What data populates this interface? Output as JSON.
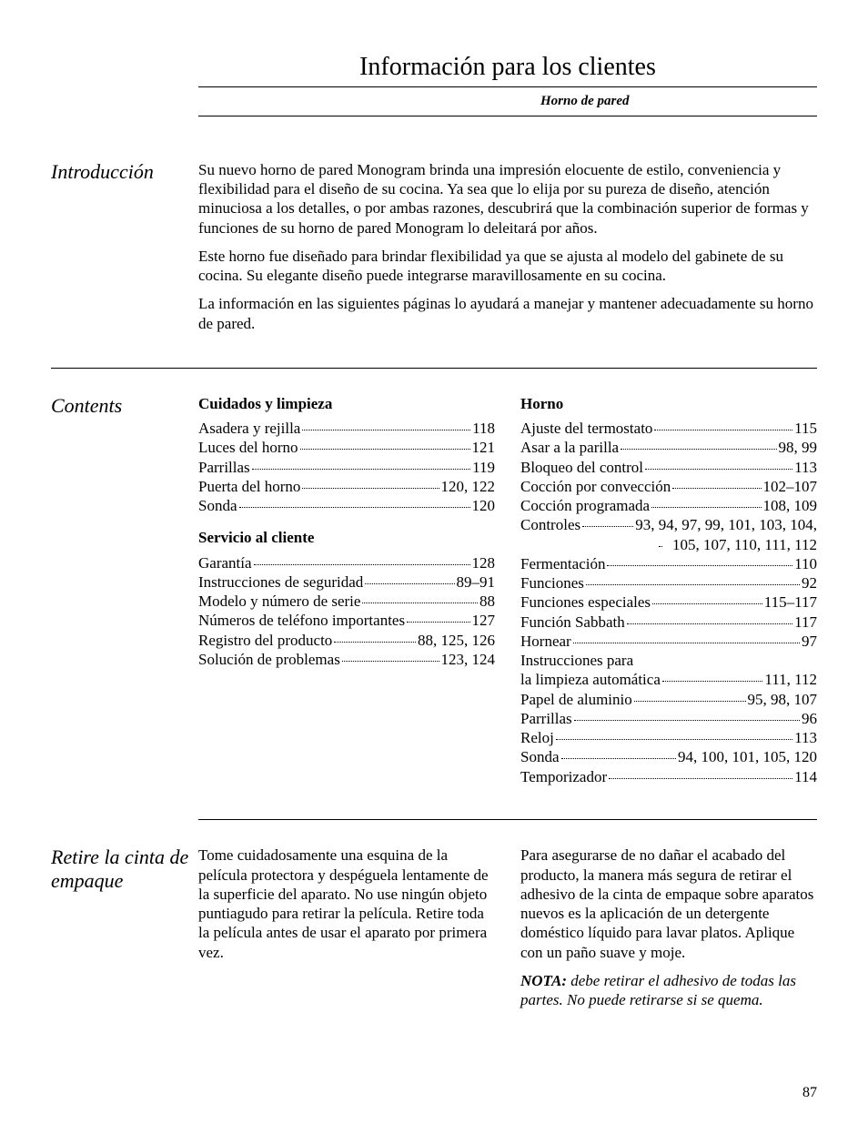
{
  "colors": {
    "text": "#000000",
    "background": "#ffffff",
    "rule": "#000000"
  },
  "typography": {
    "body_font": "Times New Roman, serif",
    "body_size_pt": 12,
    "title_size_pt": 20,
    "section_label_size_pt": 16
  },
  "header": {
    "title": "Información para los clientes",
    "subtitle": "Horno de pared"
  },
  "intro": {
    "label": "Introducción",
    "paragraphs": [
      "Su nuevo horno de pared Monogram brinda una impresión elocuente de estilo, conveniencia y flexibilidad para el diseño de su cocina. Ya sea que lo elija por su pureza de diseño, atención minuciosa a los detalles, o por ambas razones, descubrirá que la combinación superior de formas y funciones de su horno de pared Monogram lo deleitará por años.",
      "Este horno fue diseñado para brindar flexibilidad ya que se ajusta al modelo del gabinete de su cocina. Su elegante diseño puede integrarse maravillosamente en su cocina.",
      "La información en las siguientes páginas lo ayudará a manejar y mantener adecuadamente su horno de pared."
    ]
  },
  "contents": {
    "label": "Contents",
    "left": {
      "group1_title": "Cuidados y limpieza",
      "group1_items": [
        {
          "label": "Asadera y rejilla",
          "page": "118"
        },
        {
          "label": "Luces del horno",
          "page": "121"
        },
        {
          "label": "Parrillas",
          "page": "119"
        },
        {
          "label": "Puerta del horno",
          "page": "120, 122"
        },
        {
          "label": "Sonda",
          "page": "120"
        }
      ],
      "group2_title": "Servicio al cliente",
      "group2_items": [
        {
          "label": "Garantía",
          "page": "128"
        },
        {
          "label": "Instrucciones de seguridad",
          "page": "89–91"
        },
        {
          "label": "Modelo y número de serie",
          "page": "88"
        },
        {
          "label": "Números de teléfono importantes",
          "page": "127"
        },
        {
          "label": "Registro del producto",
          "page": "88, 125, 126"
        },
        {
          "label": "Solución de problemas",
          "page": "123, 124"
        }
      ]
    },
    "right": {
      "group1_title": "Horno",
      "group1_items": [
        {
          "label": "Ajuste del termostato",
          "page": "115"
        },
        {
          "label": "Asar a la parilla",
          "page": "98, 99"
        },
        {
          "label": "Bloqueo del control",
          "page": "113"
        },
        {
          "label": "Cocción por convección",
          "page": "102–107"
        },
        {
          "label": "Cocción programada",
          "page": "108, 109"
        },
        {
          "label": "Controles",
          "page": "93, 94, 97, 99, 101, 103, 104,",
          "page2": "105, 107, 110, 111, 112"
        },
        {
          "label": "Fermentación",
          "page": "110"
        },
        {
          "label": "Funciones",
          "page": "92"
        },
        {
          "label": "Funciones especiales",
          "page": "115–117"
        },
        {
          "label": "Función Sabbath",
          "page": "117"
        },
        {
          "label": "Hornear",
          "page": "97"
        },
        {
          "label": "Instrucciones para",
          "noline": true
        },
        {
          "label": "la limpieza automática",
          "page": "111, 112"
        },
        {
          "label": "Papel de aluminio",
          "page": "95, 98, 107"
        },
        {
          "label": "Parrillas",
          "page": "96"
        },
        {
          "label": "Reloj",
          "page": "113"
        },
        {
          "label": "Sonda",
          "page": "94, 100, 101, 105, 120"
        },
        {
          "label": "Temporizador",
          "page": "114"
        }
      ]
    }
  },
  "retire": {
    "label": "Retire la cinta de empaque",
    "left_paragraph": "Tome cuidadosamente una esquina de la película protectora y despéguela lentamente de la superficie del aparato. No use ningún objeto puntiagudo para retirar la película. Retire toda la película antes de usar el aparato por primera vez.",
    "right_paragraph": "Para asegurarse de no dañar el acabado del producto, la manera más segura de retirar el adhesivo de la cinta de empaque sobre aparatos nuevos es la aplicación de un detergente doméstico líquido para lavar platos. Aplique con un paño suave y moje.",
    "note_label": "NOTA:",
    "note_body": " debe retirar el adhesivo de todas las partes. No puede retirarse si se quema."
  },
  "page_number": "87"
}
